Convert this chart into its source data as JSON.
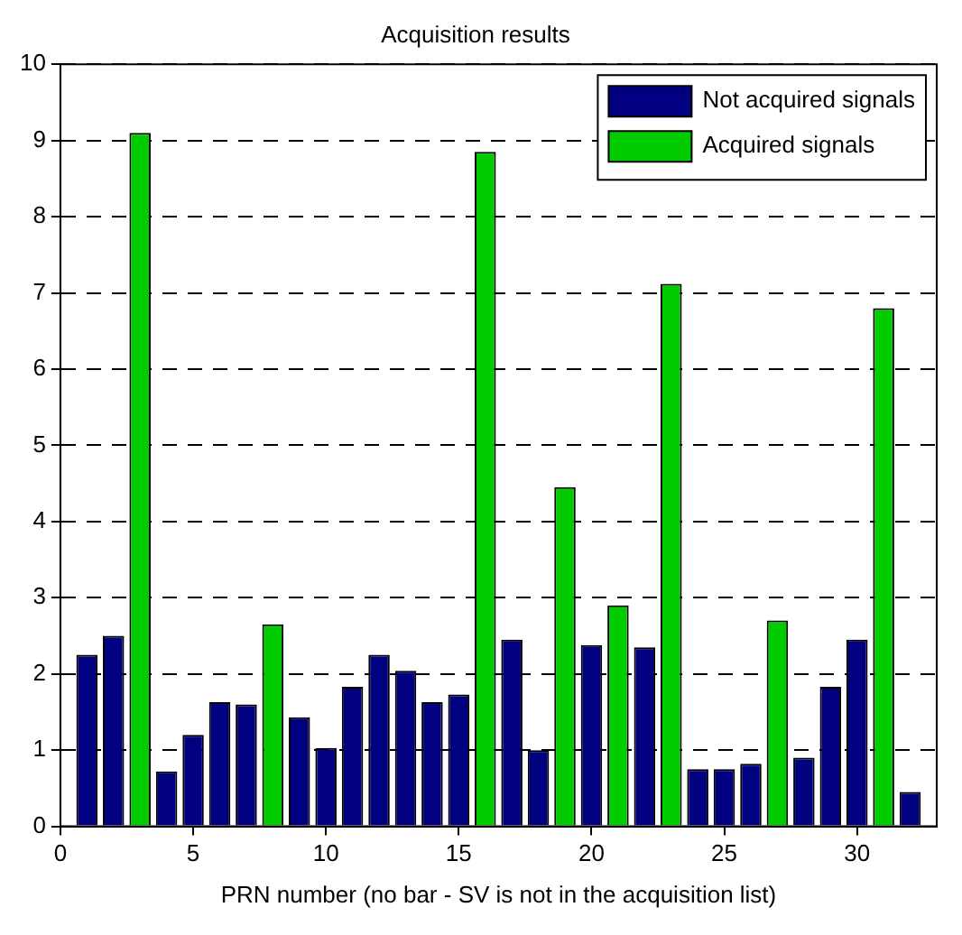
{
  "chart_data": {
    "type": "bar",
    "title": "Acquisition results",
    "xlabel": "PRN number (no bar - SV is not in the acquisition list)",
    "x": [
      1,
      2,
      3,
      4,
      5,
      6,
      7,
      8,
      9,
      10,
      11,
      12,
      13,
      14,
      15,
      16,
      17,
      18,
      19,
      20,
      21,
      22,
      23,
      24,
      25,
      26,
      27,
      28,
      29,
      30,
      31,
      32
    ],
    "series": [
      {
        "name": "Not acquired signals",
        "color": "#000080",
        "values": [
          2.25,
          2.5,
          null,
          0.72,
          1.2,
          1.63,
          1.6,
          null,
          1.43,
          1.03,
          1.83,
          2.25,
          2.04,
          1.63,
          1.73,
          null,
          2.45,
          1.0,
          null,
          2.38,
          null,
          2.35,
          null,
          0.75,
          0.75,
          0.82,
          null,
          0.9,
          1.83,
          2.45,
          null,
          0.45
        ]
      },
      {
        "name": "Acquired signals",
        "color": "#00cc00",
        "values": [
          null,
          null,
          9.1,
          null,
          null,
          null,
          null,
          2.65,
          null,
          null,
          null,
          null,
          null,
          null,
          null,
          8.85,
          null,
          null,
          4.45,
          null,
          2.9,
          null,
          7.12,
          null,
          null,
          null,
          2.7,
          null,
          null,
          null,
          6.8,
          null
        ]
      }
    ],
    "xlim": [
      0,
      33
    ],
    "xticks": [
      0,
      5,
      10,
      15,
      20,
      25,
      30
    ],
    "ylim": [
      0,
      10
    ],
    "yticks": [
      0,
      1,
      2,
      3,
      4,
      5,
      6,
      7,
      8,
      9,
      10
    ],
    "grid": "y",
    "legend": "top right"
  }
}
